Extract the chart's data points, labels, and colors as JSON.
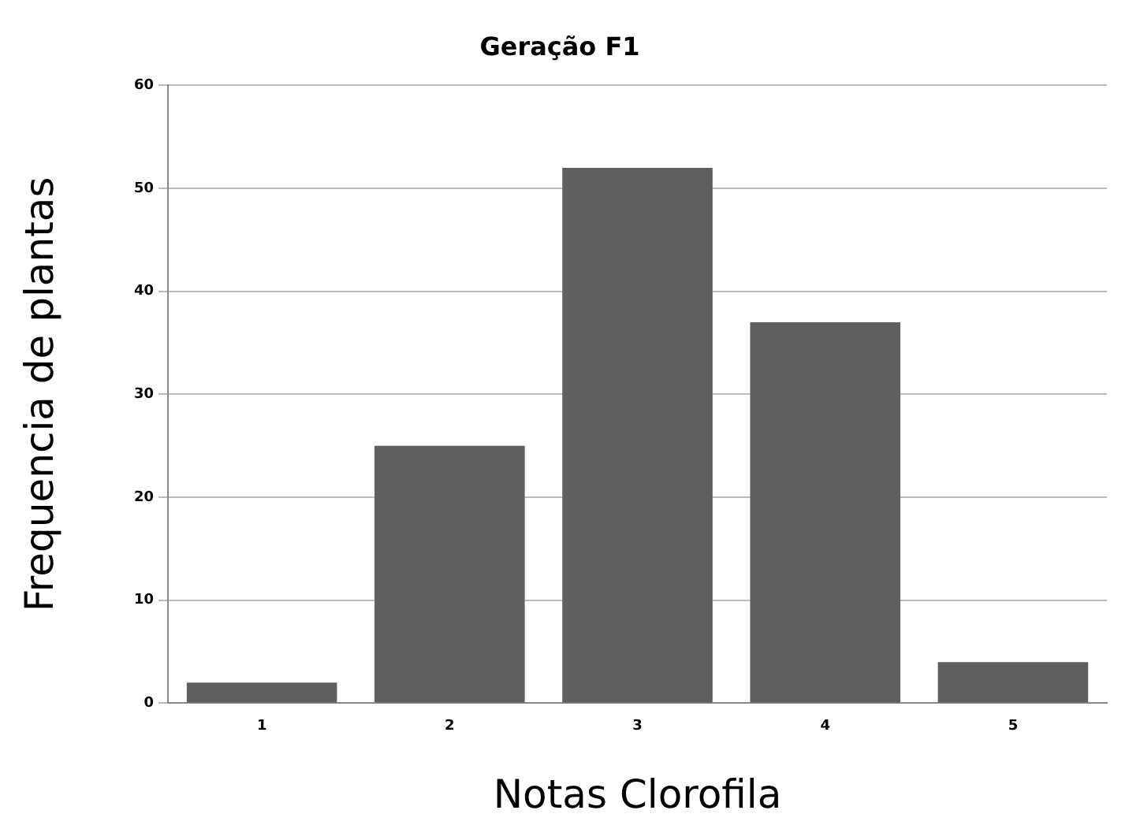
{
  "chart_data": {
    "type": "bar",
    "title": "Geração F1",
    "xlabel": "Notas Clorofila",
    "ylabel": "Frequencia de plantas",
    "categories": [
      "1",
      "2",
      "3",
      "4",
      "5"
    ],
    "values": [
      2,
      25,
      52,
      37,
      4
    ],
    "color": "#5f5f5f",
    "ylim": [
      0,
      60
    ],
    "yticks": [
      0,
      10,
      20,
      30,
      40,
      50,
      60
    ],
    "grid": "y",
    "legend": false
  }
}
